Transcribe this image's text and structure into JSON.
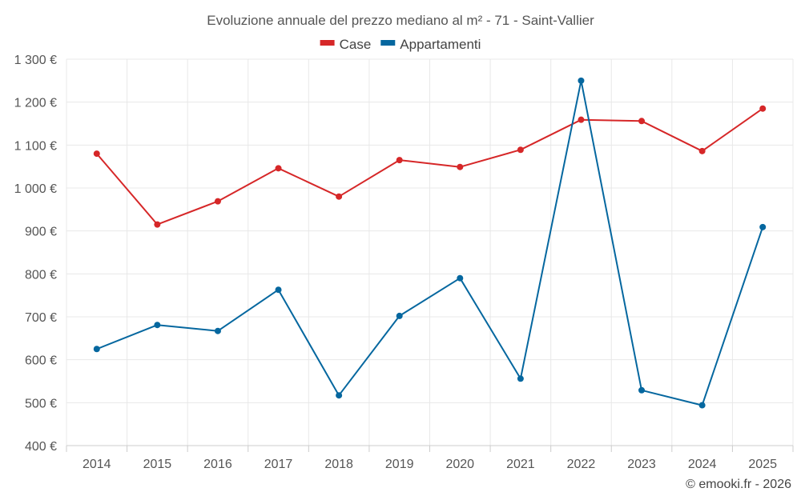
{
  "chart_data": {
    "type": "line",
    "title": "Evoluzione annuale del prezzo mediano al m² - 71 - Saint-Vallier",
    "xlabel": "",
    "ylabel": "",
    "categories": [
      "2014",
      "2015",
      "2016",
      "2017",
      "2018",
      "2019",
      "2020",
      "2021",
      "2022",
      "2023",
      "2024",
      "2025"
    ],
    "ylim": [
      400,
      1300
    ],
    "yticks": [
      {
        "value": 400,
        "label": "400 €"
      },
      {
        "value": 500,
        "label": "500 €"
      },
      {
        "value": 600,
        "label": "600 €"
      },
      {
        "value": 700,
        "label": "700 €"
      },
      {
        "value": 800,
        "label": "800 €"
      },
      {
        "value": 900,
        "label": "900 €"
      },
      {
        "value": 1000,
        "label": "1 000 €"
      },
      {
        "value": 1100,
        "label": "1 100 €"
      },
      {
        "value": 1200,
        "label": "1 200 €"
      },
      {
        "value": 1300,
        "label": "1 300 €"
      }
    ],
    "grid": true,
    "legend_position": "top-center",
    "series": [
      {
        "name": "Case",
        "color": "#d62728",
        "values": [
          1080,
          915,
          969,
          1046,
          980,
          1065,
          1049,
          1089,
          1159,
          1156,
          1086,
          1185
        ]
      },
      {
        "name": "Appartamenti",
        "color": "#05679f",
        "values": [
          625,
          681,
          667,
          763,
          517,
          702,
          790,
          556,
          1250,
          529,
          494,
          909
        ]
      }
    ],
    "credit": "© emooki.fr - 2026"
  }
}
